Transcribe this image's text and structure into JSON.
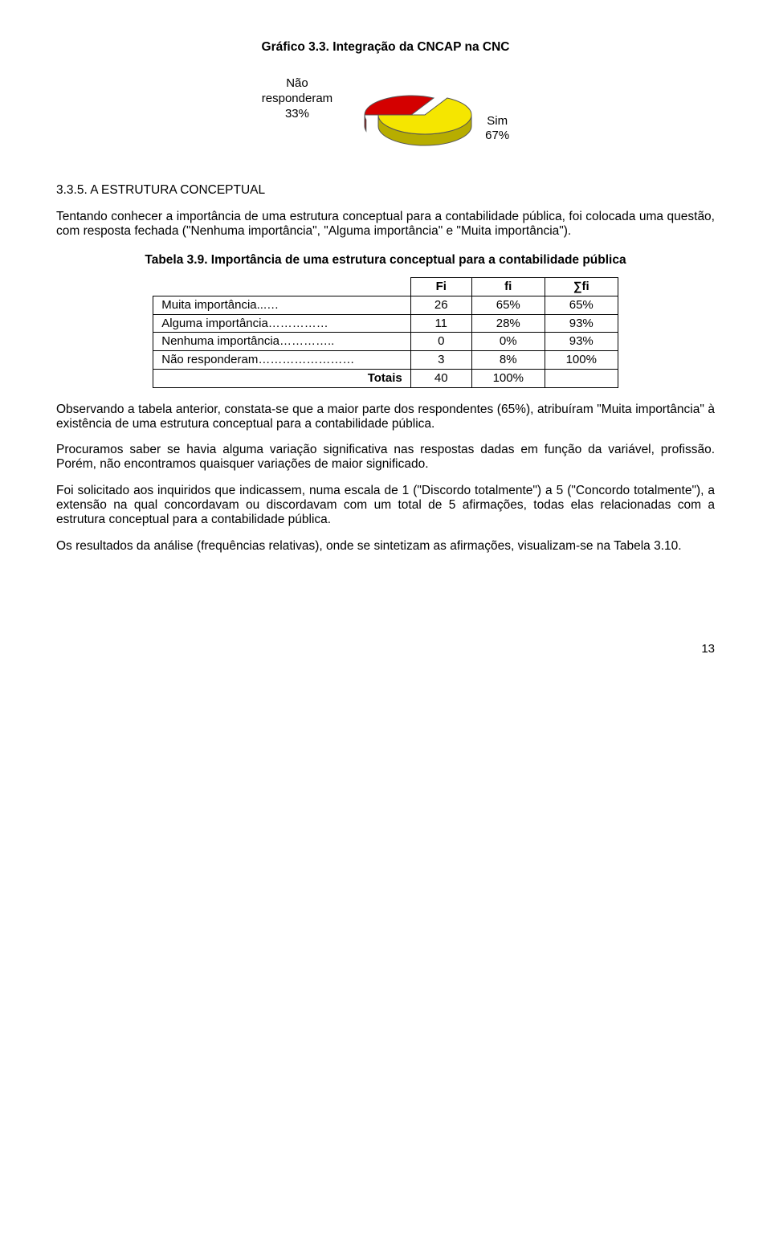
{
  "header": {
    "chart_title": "Gráfico 3.3. Integração da CNCAP na CNC"
  },
  "pie": {
    "left_label_line1": "Não",
    "left_label_line2": "responderam",
    "left_label_line3": "33%",
    "right_label_line1": "Sim",
    "right_label_line2": "67%",
    "slices": [
      {
        "fraction": 0.33,
        "color": "#d40000",
        "side_color": "#8a0000"
      },
      {
        "fraction": 0.67,
        "color": "#f5e600",
        "side_color": "#b7ad00"
      }
    ],
    "label_fontsize": 15
  },
  "section": {
    "heading": "3.3.5. A ESTRUTURA CONCEPTUAL",
    "p1": "Tentando conhecer a importância de uma estrutura conceptual para a contabilidade pública, foi colocada uma questão, com resposta fechada (\"Nenhuma importância\", \"Alguma importância\" e \"Muita importância\").",
    "table_caption": "Tabela 3.9. Importância de uma estrutura conceptual para a contabilidade pública"
  },
  "table39": {
    "columns": [
      "",
      "Fi",
      "fi",
      "∑fi"
    ],
    "rows": [
      {
        "label": "Muita importância...…",
        "Fi": "26",
        "fi": "65%",
        "sumfi": "65%"
      },
      {
        "label": "Alguma importância……………",
        "Fi": "11",
        "fi": "28%",
        "sumfi": "93%"
      },
      {
        "label": "Nenhuma importância…………..",
        "Fi": "0",
        "fi": "0%",
        "sumfi": "93%"
      },
      {
        "label": "Não responderam……………………",
        "Fi": "3",
        "fi": "8%",
        "sumfi": "100%"
      }
    ],
    "totals_label": "Totais",
    "totals_Fi": "40",
    "totals_fi": "100%",
    "totals_sumfi": "",
    "col_widths": [
      "300px",
      "55px",
      "70px",
      "70px"
    ]
  },
  "body": {
    "p2": "Observando a tabela anterior, constata-se que a maior parte dos respondentes (65%), atribuíram \"Muita importância\" à existência de uma estrutura conceptual para a contabilidade pública.",
    "p3": "Procuramos saber se havia alguma variação significativa nas respostas dadas em função da variável, profissão. Porém, não encontramos quaisquer variações de maior significado.",
    "p4": "Foi solicitado aos inquiridos que indicassem, numa escala de 1 (\"Discordo totalmente\") a 5 (\"Concordo totalmente\"), a extensão na qual concordavam ou discordavam com um total de 5 afirmações, todas elas relacionadas com a estrutura conceptual para a contabilidade pública.",
    "p5": "Os resultados da análise (frequências relativas), onde se sintetizam as afirmações, visualizam-se na Tabela 3.10."
  },
  "page_number": "13"
}
